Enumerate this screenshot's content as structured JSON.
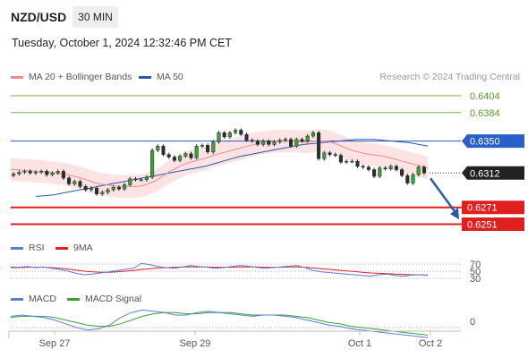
{
  "header": {
    "pair": "NZD/USD",
    "interval": "30 MIN",
    "datetime": "Tuesday, October 1, 2024 12:32:46 PM CET"
  },
  "legend": {
    "ma20": {
      "label": "MA 20 + Bollinger Bands",
      "color": "#f08c8c"
    },
    "ma50": {
      "label": "MA 50",
      "color": "#2a5aa8"
    },
    "credit": "Research © 2024 Trading Central"
  },
  "rsi_legend": {
    "rsi": {
      "label": "RSI",
      "color": "#5b7fd6"
    },
    "ma9": {
      "label": "9MA",
      "color": "#e01f1f"
    }
  },
  "macd_legend": {
    "macd": {
      "label": "MACD",
      "color": "#5b7fd6"
    },
    "signal": {
      "label": "MACD Signal",
      "color": "#3aa03a"
    }
  },
  "chart_data": {
    "type": "candlestick",
    "x_ticks": [
      "Sep 27",
      "Sep 29",
      "Oct 1",
      "Oct 2"
    ],
    "current_price": "0.6312",
    "levels": [
      {
        "value": 0.6404,
        "label": "0.6404",
        "kind": "resistance",
        "color": "#7cb342"
      },
      {
        "value": 0.6384,
        "label": "0.6384",
        "kind": "resistance",
        "color": "#7cb342"
      },
      {
        "value": 0.635,
        "label": "0.6350",
        "kind": "pivot",
        "color": "#2a5ec9"
      },
      {
        "value": 0.6271,
        "label": "0.6271",
        "kind": "support",
        "color": "#e01f1f"
      },
      {
        "value": 0.6251,
        "label": "0.6251",
        "kind": "support",
        "color": "#e01f1f"
      }
    ],
    "forecast_arrow": {
      "from": 0.6312,
      "to": 0.6262
    },
    "price_path": [
      0.6309,
      0.6311,
      0.6313,
      0.6314,
      0.6312,
      0.6313,
      0.6314,
      0.631,
      0.6312,
      0.6314,
      0.6306,
      0.6299,
      0.6302,
      0.6296,
      0.6292,
      0.6294,
      0.6287,
      0.6289,
      0.6292,
      0.6295,
      0.6293,
      0.6298,
      0.6305,
      0.6304,
      0.6304,
      0.6307,
      0.6339,
      0.6344,
      0.6334,
      0.6331,
      0.6327,
      0.6332,
      0.6335,
      0.633,
      0.6344,
      0.6345,
      0.6337,
      0.6349,
      0.636,
      0.6355,
      0.636,
      0.6363,
      0.6358,
      0.6351,
      0.635,
      0.6346,
      0.635,
      0.6346,
      0.6349,
      0.6351,
      0.6352,
      0.6344,
      0.6352,
      0.635,
      0.6356,
      0.636,
      0.6329,
      0.6336,
      0.6334,
      0.6333,
      0.6325,
      0.6326,
      0.6326,
      0.632,
      0.6319,
      0.6316,
      0.6308,
      0.6318,
      0.6317,
      0.632,
      0.6316,
      0.6309,
      0.63,
      0.631,
      0.6319,
      0.6312
    ],
    "ma20": [
      0.6316,
      0.6316,
      0.6315,
      0.6315,
      0.6314,
      0.6314,
      0.6313,
      0.6312,
      0.6311,
      0.631,
      0.6308,
      0.6306,
      0.6304,
      0.6301,
      0.6299,
      0.6298,
      0.6297,
      0.6296,
      0.6296,
      0.6296,
      0.6296,
      0.6297,
      0.63,
      0.6303,
      0.6308,
      0.6313,
      0.6317,
      0.6321,
      0.6324,
      0.6326,
      0.6328,
      0.633,
      0.6333,
      0.6335,
      0.6337,
      0.6339,
      0.6341,
      0.6343,
      0.6345,
      0.6347,
      0.6348,
      0.6349,
      0.635,
      0.635,
      0.635,
      0.635,
      0.6349,
      0.6349,
      0.635,
      0.635,
      0.635,
      0.6348,
      0.6345,
      0.6342,
      0.6339,
      0.6337,
      0.6335,
      0.6334,
      0.6333,
      0.6332,
      0.633,
      0.6328,
      0.6326,
      0.6324,
      0.6322,
      0.632,
      0.6318
    ],
    "ma50": [
      0.6284,
      0.6285,
      0.6286,
      0.6288,
      0.629,
      0.6292,
      0.6294,
      0.6296,
      0.6298,
      0.63,
      0.6302,
      0.6304,
      0.6306,
      0.6308,
      0.631,
      0.6312,
      0.6314,
      0.6316,
      0.6318,
      0.632,
      0.6323,
      0.6326,
      0.6329,
      0.6332,
      0.6334,
      0.6336,
      0.6338,
      0.634,
      0.6342,
      0.6344,
      0.6346,
      0.6347,
      0.6348,
      0.6349,
      0.635,
      0.6351,
      0.6352,
      0.6352,
      0.6352,
      0.6351,
      0.635,
      0.6349,
      0.6348,
      0.6346,
      0.6344
    ],
    "rsi_levels": [
      "70",
      "50",
      "30"
    ],
    "rsi": [
      62,
      61,
      63,
      60,
      62,
      58,
      55,
      50,
      44,
      40,
      42,
      45,
      48,
      52,
      55,
      58,
      72,
      68,
      63,
      60,
      58,
      62,
      66,
      63,
      61,
      58,
      60,
      63,
      66,
      64,
      61,
      58,
      60,
      62,
      64,
      66,
      60,
      52,
      48,
      46,
      44,
      42,
      40,
      38,
      36,
      40,
      42,
      38,
      36,
      39,
      40,
      38
    ],
    "rsi_ma9": [
      60,
      60,
      61,
      61,
      61,
      60,
      58,
      56,
      53,
      50,
      48,
      47,
      47,
      48,
      50,
      52,
      55,
      57,
      59,
      60,
      61,
      62,
      62,
      62,
      62,
      61,
      61,
      61,
      62,
      62,
      62,
      61,
      61,
      61,
      62,
      62,
      61,
      59,
      57,
      55,
      53,
      51,
      49,
      47,
      45,
      44,
      43,
      42,
      41,
      40,
      40,
      39
    ],
    "macd_zero": "0",
    "macd": [
      0.0009,
      0.001,
      0.0009,
      0.0008,
      0.0006,
      0.0003,
      0.0,
      -0.0002,
      -0.0001,
      0.0002,
      0.0008,
      0.0012,
      0.0014,
      0.0013,
      0.0012,
      0.001,
      0.001,
      0.0012,
      0.0013,
      0.0012,
      0.0011,
      0.001,
      0.0009,
      0.001,
      0.001,
      0.0009,
      0.0008,
      0.0006,
      0.0004,
      0.0002,
      0.0001,
      -0.0001,
      -0.0002,
      -0.0003,
      -0.0004,
      -0.0005,
      -0.0006,
      -0.0007,
      -0.0008
    ],
    "macd_signal": [
      0.0008,
      0.0009,
      0.0009,
      0.0009,
      0.0008,
      0.0006,
      0.0004,
      0.0002,
      0.0001,
      0.0001,
      0.0003,
      0.0006,
      0.0009,
      0.0011,
      0.0012,
      0.0012,
      0.0011,
      0.0011,
      0.0012,
      0.0012,
      0.0012,
      0.0011,
      0.001,
      0.001,
      0.001,
      0.001,
      0.0009,
      0.0008,
      0.0006,
      0.0004,
      0.0003,
      0.0001,
      0.0,
      -0.0001,
      -0.0002,
      -0.0003,
      -0.0004,
      -0.0005,
      -0.0006
    ]
  }
}
